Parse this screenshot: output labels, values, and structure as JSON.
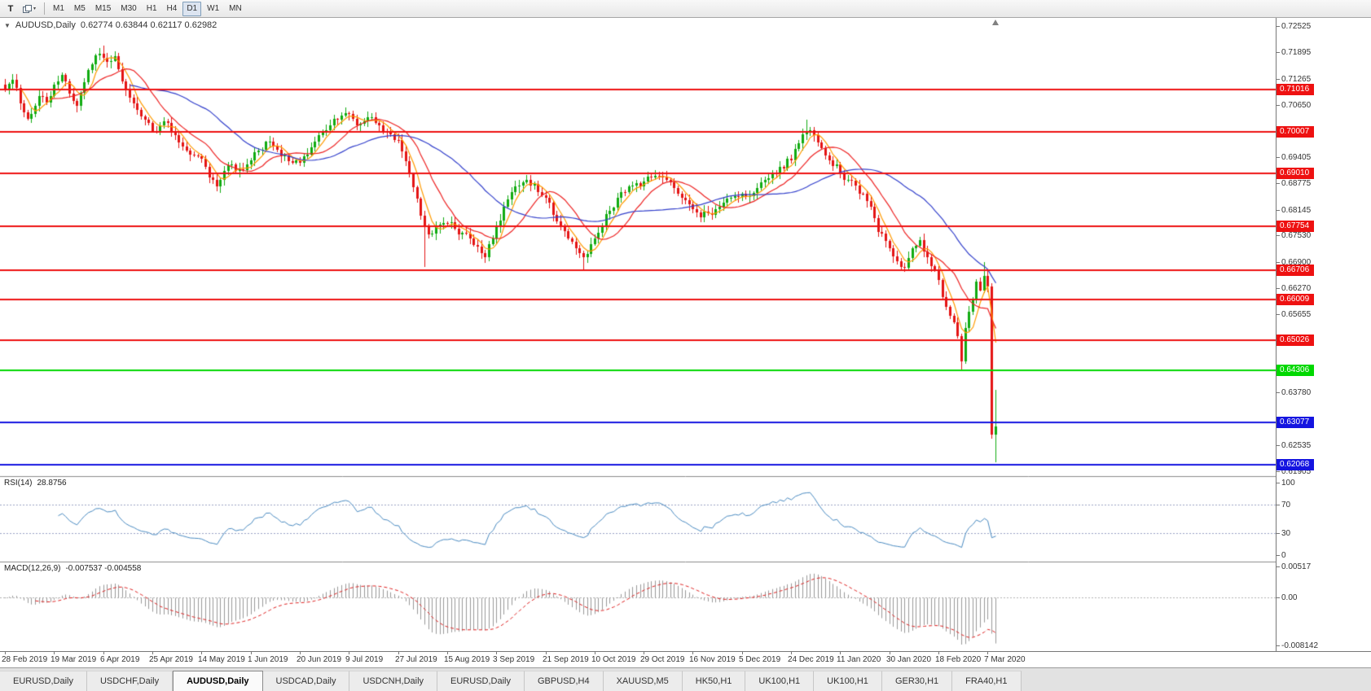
{
  "toolbar": {
    "t_button": "T",
    "timeframes": [
      "M1",
      "M5",
      "M15",
      "M30",
      "H1",
      "H4",
      "D1",
      "W1",
      "MN"
    ],
    "active_timeframe": "D1"
  },
  "icons": {
    "one_click": "▼",
    "caret": "▾"
  },
  "chart": {
    "symbol_title": "AUDUSD,Daily",
    "ohlc": "0.62774 0.63844 0.62117 0.62982"
  },
  "colors": {
    "background": "#ffffff",
    "separator": "#8c8c8c",
    "axis_text": "#333333"
  },
  "price_axis": {
    "ticks": [
      "0.72525",
      "0.71895",
      "0.71265",
      "0.70650",
      "0.69405",
      "0.68775",
      "0.68145",
      "0.67530",
      "0.66900",
      "0.66270",
      "0.65655",
      "0.63780",
      "0.62535",
      "0.61905"
    ]
  },
  "rsi": {
    "name": "RSI(14)",
    "value": "28.8756",
    "axis": [
      "100",
      "70",
      "30",
      "0"
    ],
    "levels": [
      70,
      30
    ],
    "line_color": "#4a8bc2",
    "level_color": "#9aa4c6"
  },
  "macd": {
    "name": "MACD(12,26,9)",
    "values": "-0.007537 -0.004558",
    "axis_max": "0.00517",
    "axis_zero": "0.00",
    "axis_min": "-0.008142",
    "hist_color": "#999999",
    "signal_color": "#e02020",
    "zero_color": "#b4b4b4"
  },
  "date_axis": {
    "labels": [
      "28 Feb 2019",
      "19 Mar 2019",
      "6 Apr 2019",
      "25 Apr 2019",
      "14 May 2019",
      "1 Jun 2019",
      "20 Jun 2019",
      "9 Jul 2019",
      "27 Jul 2019",
      "15 Aug 2019",
      "3 Sep 2019",
      "21 Sep 2019",
      "10 Oct 2019",
      "29 Oct 2019",
      "16 Nov 2019",
      "5 Dec 2019",
      "24 Dec 2019",
      "11 Jan 2020",
      "30 Jan 2020",
      "18 Feb 2020",
      "7 Mar 2020"
    ],
    "label_every_bars": 13
  },
  "tabs": {
    "items": [
      "EURUSD,Daily",
      "USDCHF,Daily",
      "AUDUSD,Daily",
      "USDCAD,Daily",
      "USDCNH,Daily",
      "EURUSD,Daily",
      "GBPUSD,H4",
      "XAUUSD,M5",
      "HK50,H1",
      "UK100,H1",
      "UK100,H1",
      "GER30,H1",
      "FRA40,H1"
    ],
    "active_index": 2
  },
  "chart_data": {
    "type": "candlestick",
    "symbol": "AUDUSD",
    "timeframe": "Daily",
    "bar_count": 263,
    "price_range": {
      "top": 0.72525,
      "bottom": 0.61905
    },
    "up_color": "#11ab11",
    "down_color": "#e41414",
    "last_bar": {
      "open": 0.62774,
      "high": 0.63844,
      "low": 0.62117,
      "close": 0.62982
    },
    "keyframes": [
      [
        0,
        0.71
      ],
      [
        2,
        0.7125
      ],
      [
        4,
        0.7068
      ],
      [
        6,
        0.7032
      ],
      [
        9,
        0.7086
      ],
      [
        11,
        0.707
      ],
      [
        13,
        0.7112
      ],
      [
        15,
        0.7136
      ],
      [
        17,
        0.7092
      ],
      [
        19,
        0.7062
      ],
      [
        21,
        0.7118
      ],
      [
        23,
        0.7162
      ],
      [
        25,
        0.7186
      ],
      [
        27,
        0.7168
      ],
      [
        29,
        0.718
      ],
      [
        31,
        0.712
      ],
      [
        33,
        0.7082
      ],
      [
        35,
        0.7052
      ],
      [
        37,
        0.703
      ],
      [
        39,
        0.7002
      ],
      [
        41,
        0.7016
      ],
      [
        43,
        0.7022
      ],
      [
        45,
        0.6992
      ],
      [
        47,
        0.6966
      ],
      [
        49,
        0.6946
      ],
      [
        52,
        0.6936
      ],
      [
        54,
        0.6892
      ],
      [
        56,
        0.687
      ],
      [
        58,
        0.6906
      ],
      [
        60,
        0.6922
      ],
      [
        62,
        0.691
      ],
      [
        65,
        0.6932
      ],
      [
        67,
        0.6956
      ],
      [
        69,
        0.6976
      ],
      [
        71,
        0.6966
      ],
      [
        73,
        0.6942
      ],
      [
        75,
        0.693
      ],
      [
        78,
        0.6926
      ],
      [
        80,
        0.6946
      ],
      [
        82,
        0.6976
      ],
      [
        84,
        0.7
      ],
      [
        86,
        0.7016
      ],
      [
        88,
        0.703
      ],
      [
        91,
        0.7042
      ],
      [
        93,
        0.7016
      ],
      [
        95,
        0.7026
      ],
      [
        97,
        0.7036
      ],
      [
        99,
        0.7016
      ],
      [
        101,
        0.7
      ],
      [
        104,
        0.698
      ],
      [
        106,
        0.693
      ],
      [
        108,
        0.6868
      ],
      [
        110,
        0.68
      ],
      [
        112,
        0.6756
      ],
      [
        114,
        0.6772
      ],
      [
        117,
        0.6782
      ],
      [
        119,
        0.677
      ],
      [
        121,
        0.676
      ],
      [
        123,
        0.6746
      ],
      [
        125,
        0.6726
      ],
      [
        127,
        0.6702
      ],
      [
        130,
        0.6772
      ],
      [
        132,
        0.6822
      ],
      [
        134,
        0.6856
      ],
      [
        136,
        0.6872
      ],
      [
        138,
        0.6886
      ],
      [
        140,
        0.6876
      ],
      [
        143,
        0.6842
      ],
      [
        145,
        0.6802
      ],
      [
        147,
        0.6772
      ],
      [
        149,
        0.6746
      ],
      [
        151,
        0.6722
      ],
      [
        153,
        0.6702
      ],
      [
        156,
        0.6746
      ],
      [
        158,
        0.6776
      ],
      [
        160,
        0.6812
      ],
      [
        162,
        0.6842
      ],
      [
        164,
        0.6856
      ],
      [
        166,
        0.6872
      ],
      [
        169,
        0.6882
      ],
      [
        171,
        0.6892
      ],
      [
        173,
        0.6896
      ],
      [
        175,
        0.6886
      ],
      [
        177,
        0.6866
      ],
      [
        179,
        0.6842
      ],
      [
        182,
        0.6816
      ],
      [
        184,
        0.6796
      ],
      [
        186,
        0.6806
      ],
      [
        188,
        0.6816
      ],
      [
        190,
        0.6832
      ],
      [
        192,
        0.6842
      ],
      [
        195,
        0.6852
      ],
      [
        197,
        0.6846
      ],
      [
        199,
        0.6866
      ],
      [
        201,
        0.6886
      ],
      [
        203,
        0.6902
      ],
      [
        205,
        0.6916
      ],
      [
        208,
        0.6932
      ],
      [
        210,
        0.6972
      ],
      [
        212,
        0.7002
      ],
      [
        214,
        0.6992
      ],
      [
        216,
        0.6962
      ],
      [
        218,
        0.6932
      ],
      [
        221,
        0.6902
      ],
      [
        223,
        0.6886
      ],
      [
        225,
        0.6872
      ],
      [
        227,
        0.6852
      ],
      [
        229,
        0.6822
      ],
      [
        231,
        0.6762
      ],
      [
        234,
        0.6722
      ],
      [
        236,
        0.6692
      ],
      [
        238,
        0.6676
      ],
      [
        240,
        0.6722
      ],
      [
        242,
        0.6742
      ],
      [
        244,
        0.6702
      ],
      [
        246,
        0.6672
      ],
      [
        247,
        0.6646
      ],
      [
        248,
        0.6606
      ],
      [
        249,
        0.6582
      ],
      [
        250,
        0.6562
      ],
      [
        251,
        0.6546
      ],
      [
        252,
        0.6512
      ],
      [
        253,
        0.6452
      ],
      [
        254,
        0.6532
      ],
      [
        255,
        0.6572
      ],
      [
        256,
        0.6602
      ],
      [
        257,
        0.6642
      ],
      [
        258,
        0.6622
      ],
      [
        259,
        0.6656
      ],
      [
        260,
        0.6632
      ],
      [
        261,
        0.6278
      ],
      [
        262,
        0.62982
      ]
    ],
    "overrides": {
      "25": {
        "high": 0.72
      },
      "26": {
        "high": 0.7205
      },
      "91": {
        "high": 0.7048
      },
      "111": {
        "low": 0.6678
      },
      "138": {
        "high": 0.6897
      },
      "153": {
        "low": 0.6671
      },
      "212": {
        "high": 0.703
      },
      "253": {
        "low": 0.6434
      },
      "259": {
        "high": 0.669
      },
      "261": {
        "open": 0.6632,
        "low": 0.6268
      },
      "262": {
        "open": 0.62774,
        "high": 0.63844,
        "low": 0.62117,
        "close": 0.62982
      }
    },
    "moving_averages": [
      {
        "period": 5,
        "color": "#ff9b00"
      },
      {
        "period": 13,
        "color": "#ee2222"
      },
      {
        "period": 34,
        "color": "#3340cc"
      }
    ],
    "levels": [
      {
        "price": 0.71016,
        "label": "0.71016",
        "color": "#ee1111"
      },
      {
        "price": 0.70007,
        "label": "0.70007",
        "color": "#ee1111"
      },
      {
        "price": 0.6901,
        "label": "0.69010",
        "color": "#ee1111"
      },
      {
        "price": 0.67754,
        "label": "0.67754",
        "color": "#ee1111"
      },
      {
        "price": 0.66706,
        "label": "0.66706",
        "color": "#ee1111"
      },
      {
        "price": 0.66009,
        "label": "0.66009",
        "color": "#ee1111"
      },
      {
        "price": 0.65026,
        "label": "0.65026",
        "color": "#ee1111"
      },
      {
        "price": 0.64306,
        "label": "0.64306",
        "color": "#00d800"
      },
      {
        "price": 0.63077,
        "label": "0.63077",
        "color": "#1414e0"
      },
      {
        "price": 0.62068,
        "label": "0.62068",
        "color": "#1414e0"
      }
    ]
  }
}
